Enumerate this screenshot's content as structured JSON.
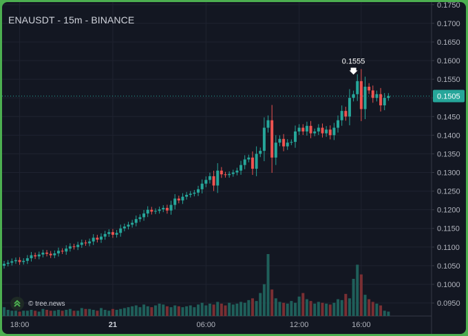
{
  "header": {
    "title": "ENAUSDT - 15m - BINANCE"
  },
  "watermark": {
    "text": "© tree.news",
    "icon": "double-chevron-up-icon"
  },
  "colors": {
    "background": "#131722",
    "up": "#26a69a",
    "down": "#ef5350",
    "up_volume": "#1f5f5a",
    "down_volume": "#7a2f33",
    "last_price_line": "#26a69a",
    "frame": "#4caf50"
  },
  "chart_data": {
    "type": "candlestick",
    "title": "ENAUSDT - 15m - BINANCE",
    "xlabel": "",
    "ylabel": "",
    "ylim": [
      0.0915,
      0.1757
    ],
    "y_ticks": [
      "0.1750",
      "0.1700",
      "0.1650",
      "0.1600",
      "0.1550",
      "0.1500",
      "0.1450",
      "0.1400",
      "0.1350",
      "0.1300",
      "0.1250",
      "0.1200",
      "0.1150",
      "0.1100",
      "0.1050",
      "0.1000",
      "0.0950"
    ],
    "x_ticks": [
      {
        "label": "18:00",
        "index": 4,
        "bold": false
      },
      {
        "label": "21",
        "index": 28,
        "bold": true
      },
      {
        "label": "06:00",
        "index": 52,
        "bold": false
      },
      {
        "label": "12:00",
        "index": 76,
        "bold": false
      },
      {
        "label": "16:00",
        "index": 92,
        "bold": false
      }
    ],
    "last_price": {
      "label": "0.1505",
      "value": 0.1505
    },
    "annotation": {
      "label": "0.1555",
      "value": 0.1555,
      "index": 90
    },
    "grid": true,
    "legend": "none",
    "close": [
      0.1055,
      0.1058,
      0.1062,
      0.1065,
      0.106,
      0.1063,
      0.107,
      0.1078,
      0.1075,
      0.108,
      0.1085,
      0.1082,
      0.1078,
      0.1083,
      0.109,
      0.1088,
      0.1096,
      0.1102,
      0.11,
      0.1106,
      0.1112,
      0.111,
      0.1115,
      0.1125,
      0.112,
      0.1128,
      0.1135,
      0.114,
      0.1133,
      0.1138,
      0.115,
      0.1155,
      0.116,
      0.1165,
      0.1175,
      0.118,
      0.119,
      0.12,
      0.1195,
      0.1197,
      0.1201,
      0.1205,
      0.1198,
      0.1213,
      0.123,
      0.1225,
      0.1235,
      0.124,
      0.1243,
      0.1246,
      0.1255,
      0.127,
      0.128,
      0.129,
      0.1265,
      0.1305,
      0.1295,
      0.1293,
      0.1296,
      0.13,
      0.1305,
      0.132,
      0.1335,
      0.134,
      0.131,
      0.135,
      0.1358,
      0.142,
      0.144,
      0.134,
      0.138,
      0.139,
      0.137,
      0.138,
      0.1382,
      0.141,
      0.142,
      0.141,
      0.1425,
      0.1405,
      0.141,
      0.142,
      0.1405,
      0.1415,
      0.14,
      0.142,
      0.144,
      0.1465,
      0.145,
      0.15,
      0.151,
      0.1545,
      0.147,
      0.153,
      0.152,
      0.15,
      0.151,
      0.148,
      0.15,
      0.1505
    ],
    "volume": [
      1.0,
      0.7,
      0.6,
      0.6,
      0.5,
      0.6,
      0.6,
      0.7,
      0.6,
      0.5,
      0.8,
      0.7,
      0.6,
      0.6,
      0.7,
      0.6,
      0.7,
      0.8,
      0.6,
      0.6,
      0.9,
      0.8,
      0.8,
      0.7,
      0.6,
      0.9,
      0.7,
      0.6,
      0.8,
      0.7,
      0.8,
      0.9,
      1.0,
      1.1,
      1.2,
      1.0,
      1.3,
      1.1,
      1.0,
      1.2,
      1.4,
      1.3,
      1.1,
      1.0,
      1.2,
      1.1,
      1.0,
      1.1,
      1.2,
      1.0,
      1.3,
      1.5,
      1.2,
      1.4,
      1.3,
      1.6,
      1.4,
      1.2,
      1.5,
      1.3,
      1.4,
      1.6,
      1.5,
      1.8,
      2.0,
      1.7,
      2.6,
      3.6,
      7.0,
      3.0,
      2.0,
      1.6,
      1.5,
      1.4,
      1.7,
      1.5,
      2.2,
      2.6,
      1.9,
      1.7,
      1.4,
      1.6,
      1.5,
      1.4,
      1.3,
      1.5,
      1.9,
      1.8,
      2.5,
      2.0,
      4.2,
      5.8,
      4.7,
      2.4,
      1.9,
      1.6,
      1.4,
      1.2,
      0.6,
      0.5
    ]
  }
}
